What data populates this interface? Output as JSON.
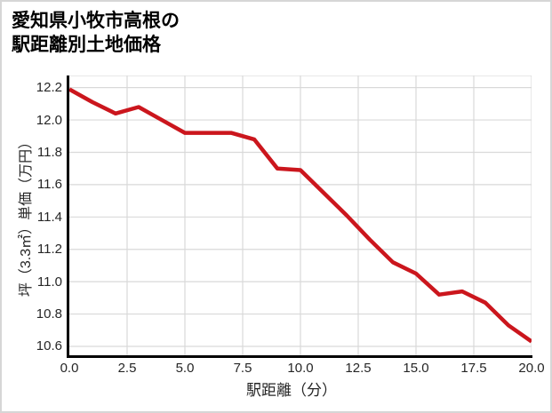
{
  "title": "愛知県小牧市高根の\n駅距離別土地価格",
  "chart_data": {
    "type": "line",
    "title": "愛知県小牧市高根の駅距離別土地価格",
    "xlabel": "駅距離（分）",
    "ylabel": "坪（3.3㎡）単価（万円）",
    "x": [
      0,
      1,
      2,
      3,
      4,
      5,
      6,
      7,
      8,
      9,
      10,
      11,
      12,
      13,
      14,
      15,
      16,
      17,
      18,
      19,
      20
    ],
    "values": [
      12.19,
      12.11,
      12.04,
      12.08,
      12.0,
      11.92,
      11.92,
      11.92,
      11.88,
      11.7,
      11.69,
      11.55,
      11.41,
      11.26,
      11.12,
      11.05,
      10.92,
      10.94,
      10.87,
      10.73,
      10.63
    ],
    "series_name": "駅距離別土地価格",
    "xlim": [
      0,
      20
    ],
    "ylim": [
      10.545,
      12.275
    ],
    "xticks": [
      0.0,
      2.5,
      5.0,
      7.5,
      10.0,
      12.5,
      15.0,
      17.5,
      20.0
    ],
    "xtick_labels": [
      "0.0",
      "2.5",
      "5.0",
      "7.5",
      "10.0",
      "12.5",
      "15.0",
      "17.5",
      "20.0"
    ],
    "yticks": [
      12.2,
      12.0,
      11.8,
      11.6,
      11.4,
      11.2,
      11.0,
      10.8,
      10.6
    ],
    "ytick_labels": [
      "12.2",
      "12.0",
      "11.8",
      "11.6",
      "11.4",
      "11.2",
      "11.0",
      "10.8",
      "10.6"
    ],
    "grid": true,
    "legend": "none",
    "line_color": "#cb161d",
    "grid_color": "#d9d9d9",
    "axis_color": "#000000",
    "tick_text_color": "#262626",
    "line_width": 4.5
  }
}
